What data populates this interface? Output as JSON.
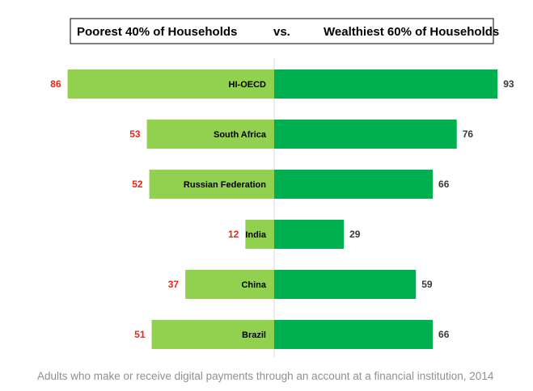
{
  "legend": {
    "left_label": "Poorest 40% of Households",
    "separator": "vs.",
    "right_label": "Wealthiest 60% of Households"
  },
  "caption": "Adults who make or receive digital payments through an account at a financial institution, 2014",
  "colors": {
    "left_bar": "#92d050",
    "right_bar": "#00b050",
    "left_value": "#e8261c",
    "right_value": "#3a3a3a",
    "caption": "#8c9196",
    "center_line": "#d9d9d9"
  },
  "chart_data": {
    "type": "bar",
    "orientation": "horizontal-diverging",
    "categories": [
      "HI-OECD",
      "South Africa",
      "Russian Federation",
      "India",
      "China",
      "Brazil"
    ],
    "series": [
      {
        "name": "Poorest 40% of Households",
        "values": [
          86,
          53,
          52,
          12,
          37,
          51
        ]
      },
      {
        "name": "Wealthiest 60% of Households",
        "values": [
          93,
          76,
          66,
          29,
          59,
          66
        ]
      }
    ],
    "xlim": [
      0,
      100
    ]
  }
}
